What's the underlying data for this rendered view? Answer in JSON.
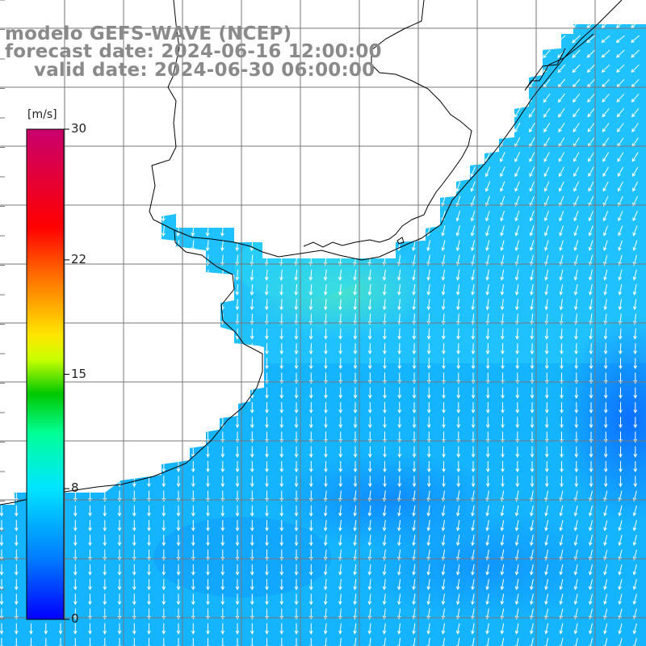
{
  "title": {
    "line1": "modelo GEFS-WAVE (NCEP)",
    "line2": "forecast date: 2024-06-16 12:00:00",
    "line3": "valid date: 2024-06-30 06:00:00"
  },
  "colorbar": {
    "units": "[m/s]",
    "min": 0,
    "max": 30,
    "ticks": [
      {
        "label": "30",
        "value": 30
      },
      {
        "label": "22",
        "value": 22
      },
      {
        "label": "15",
        "value": 15
      },
      {
        "label": "8",
        "value": 8
      },
      {
        "label": "0",
        "value": 0
      }
    ],
    "colors": [
      "#0000ff",
      "#00aaff",
      "#00e6ff",
      "#00ff80",
      "#00cc00",
      "#ffff00",
      "#ff8800",
      "#ff0000",
      "#c8006e"
    ]
  },
  "field": {
    "variable": "wind speed and direction",
    "typical_speed": 6.5,
    "wind_direction": "from north / northeast"
  },
  "grid": {
    "color": "#777777"
  },
  "colors": {
    "land": "#ffffff",
    "coast": "#000000",
    "ocean_base": "#14b4ff",
    "arrows": "#ffffff"
  }
}
